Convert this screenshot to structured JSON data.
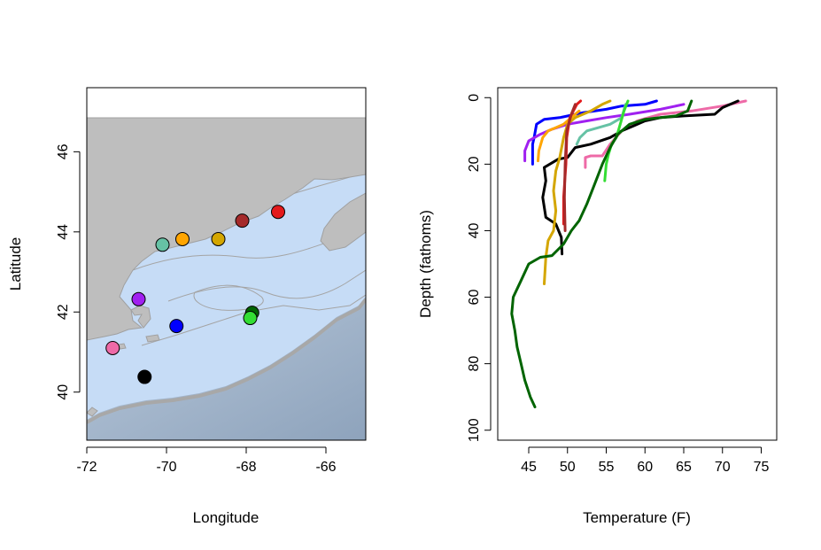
{
  "chart_data": [
    {
      "type": "scatter",
      "title": "",
      "xlabel": "Longitude",
      "ylabel": "Latitude",
      "xlim": [
        -72,
        -65
      ],
      "ylim": [
        38.8,
        47.6
      ],
      "x_ticks": [
        -72,
        -70,
        -68,
        -66
      ],
      "y_ticks": [
        40,
        42,
        44,
        46
      ],
      "x_tick_labels": [
        "-72",
        "-70",
        "-68",
        "-66"
      ],
      "y_tick_labels": [
        "40",
        "42",
        "44",
        "46"
      ],
      "grid": false,
      "legend": "none",
      "background": {
        "land": "#bebebe",
        "water": "#c6dcf6",
        "deep_water": "#9fb2c8",
        "isobath": "#a4a4a4"
      },
      "points": [
        {
          "x": -70.1,
          "y": 43.68,
          "color": "#66c2a5"
        },
        {
          "x": -69.6,
          "y": 43.82,
          "color": "#ffa500"
        },
        {
          "x": -68.7,
          "y": 43.82,
          "color": "#d4a600"
        },
        {
          "x": -68.1,
          "y": 44.28,
          "color": "#a52a2a"
        },
        {
          "x": -67.2,
          "y": 44.5,
          "color": "#e31a1c"
        },
        {
          "x": -70.7,
          "y": 42.32,
          "color": "#a020f0"
        },
        {
          "x": -67.85,
          "y": 41.98,
          "color": "#006400"
        },
        {
          "x": -67.9,
          "y": 41.85,
          "color": "#33dd33"
        },
        {
          "x": -69.75,
          "y": 41.65,
          "color": "#0000ff"
        },
        {
          "x": -71.35,
          "y": 41.1,
          "color": "#ee6aa7"
        },
        {
          "x": -70.55,
          "y": 40.38,
          "color": "#000000"
        }
      ]
    },
    {
      "type": "line",
      "title": "",
      "xlabel": "Temperature (F)",
      "ylabel": "Depth (fathoms)",
      "xlim": [
        41,
        77
      ],
      "ylim": [
        103,
        -3
      ],
      "y_reversed": true,
      "x_ticks": [
        45,
        50,
        55,
        60,
        65,
        70,
        75
      ],
      "y_ticks": [
        0,
        20,
        40,
        60,
        80,
        100
      ],
      "x_tick_labels": [
        "45",
        "50",
        "55",
        "60",
        "65",
        "70",
        "75"
      ],
      "y_tick_labels": [
        "0",
        "20",
        "40",
        "60",
        "80",
        "100"
      ],
      "grid": false,
      "legend": "none",
      "series": [
        {
          "color": "#0000ff",
          "points": [
            [
              45.5,
              20
            ],
            [
              45.5,
              14
            ],
            [
              45.7,
              12
            ],
            [
              46,
              8
            ],
            [
              47,
              6.5
            ],
            [
              49,
              6
            ],
            [
              52,
              4.5
            ],
            [
              55,
              3.5
            ],
            [
              57,
              2.5
            ],
            [
              60,
              2
            ],
            [
              61.5,
              1
            ]
          ]
        },
        {
          "color": "#a020f0",
          "points": [
            [
              44.5,
              19
            ],
            [
              44.5,
              16
            ],
            [
              45,
              13
            ],
            [
              46.5,
              11
            ],
            [
              48,
              9.5
            ],
            [
              50,
              8
            ],
            [
              52.5,
              7
            ],
            [
              55,
              6
            ],
            [
              58,
              5
            ],
            [
              62,
              3.5
            ],
            [
              65,
              2
            ]
          ]
        },
        {
          "color": "#ee6aa7",
          "points": [
            [
              52.3,
              21
            ],
            [
              52.3,
              18
            ],
            [
              53,
              17.5
            ],
            [
              54.5,
              17.5
            ],
            [
              55.5,
              14
            ],
            [
              57,
              10
            ],
            [
              59,
              7
            ],
            [
              62,
              5
            ],
            [
              66,
              4
            ],
            [
              70,
              2.5
            ],
            [
              73,
              1
            ]
          ]
        },
        {
          "color": "#000000",
          "points": [
            [
              49.3,
              47
            ],
            [
              49.2,
              42
            ],
            [
              48.5,
              38
            ],
            [
              47.2,
              36
            ],
            [
              46.8,
              30
            ],
            [
              47.2,
              25
            ],
            [
              47,
              21
            ],
            [
              48.8,
              18.5
            ],
            [
              50,
              18
            ],
            [
              51,
              15
            ],
            [
              53,
              14
            ],
            [
              55.5,
              12
            ],
            [
              57,
              10
            ],
            [
              58.5,
              8.5
            ],
            [
              60,
              7
            ],
            [
              62,
              6
            ],
            [
              65,
              5.5
            ],
            [
              69,
              5
            ],
            [
              70,
              3
            ],
            [
              72,
              1
            ]
          ]
        },
        {
          "color": "#d4a600",
          "points": [
            [
              47,
              56
            ],
            [
              47.2,
              48
            ],
            [
              47.5,
              43
            ],
            [
              48.2,
              40
            ],
            [
              48.5,
              34
            ],
            [
              48.2,
              28
            ],
            [
              48.5,
              22
            ],
            [
              49,
              18
            ],
            [
              49.5,
              12
            ],
            [
              50,
              8
            ],
            [
              51,
              6
            ],
            [
              53,
              4
            ],
            [
              54.5,
              2
            ],
            [
              55.5,
              1
            ]
          ]
        },
        {
          "color": "#ffa500",
          "points": [
            [
              46.2,
              19
            ],
            [
              46.3,
              16
            ],
            [
              46.8,
              12
            ],
            [
              47.5,
              10
            ],
            [
              48.5,
              9
            ],
            [
              49.5,
              8
            ],
            [
              50.5,
              6
            ],
            [
              51.5,
              4
            ]
          ]
        },
        {
          "color": "#e31a1c",
          "points": [
            [
              49.5,
              38
            ],
            [
              49.5,
              30
            ],
            [
              49.8,
              20
            ],
            [
              49.9,
              12
            ],
            [
              50.3,
              6
            ],
            [
              51.2,
              2
            ],
            [
              51.7,
              1
            ]
          ]
        },
        {
          "color": "#a52a2a",
          "points": [
            [
              49.7,
              40
            ],
            [
              49.6,
              30
            ],
            [
              49.7,
              20
            ],
            [
              49.9,
              10
            ],
            [
              50.5,
              5
            ],
            [
              51,
              2
            ]
          ]
        },
        {
          "color": "#66c2a5",
          "points": [
            [
              51.2,
              14
            ],
            [
              51.6,
              12
            ],
            [
              52.5,
              10
            ],
            [
              54,
              9
            ],
            [
              55.5,
              8
            ],
            [
              57,
              6
            ],
            [
              57.5,
              2
            ]
          ]
        },
        {
          "color": "#33dd33",
          "points": [
            [
              54.8,
              25
            ],
            [
              55,
              20
            ],
            [
              55.3,
              17
            ],
            [
              55.7,
              14
            ],
            [
              56.3,
              12
            ],
            [
              56.8,
              8
            ],
            [
              57.3,
              4
            ],
            [
              57.8,
              1
            ]
          ]
        },
        {
          "color": "#006400",
          "points": [
            [
              45.8,
              93
            ],
            [
              45.2,
              90
            ],
            [
              44.5,
              85
            ],
            [
              44,
              80
            ],
            [
              43.5,
              75
            ],
            [
              43.2,
              70
            ],
            [
              42.8,
              65
            ],
            [
              43,
              60
            ],
            [
              44,
              55
            ],
            [
              45,
              50
            ],
            [
              46.5,
              48
            ],
            [
              48,
              47.5
            ],
            [
              49.5,
              44
            ],
            [
              50.5,
              40
            ],
            [
              51.5,
              37
            ],
            [
              52.5,
              32
            ],
            [
              53.5,
              26
            ],
            [
              54.5,
              20
            ],
            [
              55.5,
              15
            ],
            [
              56.5,
              11
            ],
            [
              58,
              8
            ],
            [
              60,
              6.5
            ],
            [
              62,
              6
            ],
            [
              64,
              5.5
            ],
            [
              65.5,
              4
            ],
            [
              66,
              1
            ]
          ]
        }
      ]
    }
  ]
}
